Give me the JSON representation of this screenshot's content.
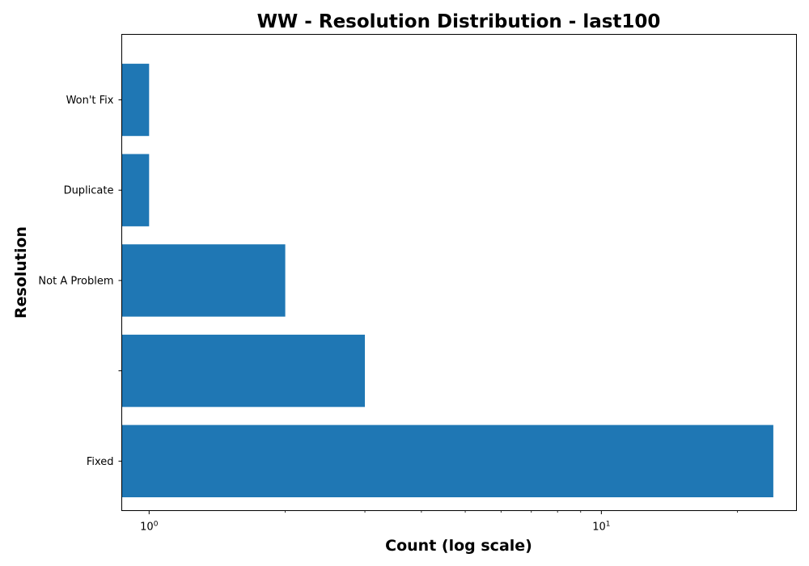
{
  "chart_data": {
    "type": "bar",
    "orientation": "horizontal",
    "title": "WW - Resolution Distribution - last100",
    "xlabel": "Count (log scale)",
    "ylabel": "Resolution",
    "x_scale": "log",
    "xlim": [
      0.87,
      27
    ],
    "x_major_ticks": [
      {
        "value": 1,
        "label": "10",
        "exp": "0"
      },
      {
        "value": 10,
        "label": "10",
        "exp": "1"
      }
    ],
    "categories": [
      "Fixed",
      "",
      "Not A Problem",
      "Duplicate",
      "Won't Fix"
    ],
    "values": [
      24,
      3,
      2,
      1,
      1
    ],
    "bar_color": "#1f77b4",
    "grid": false,
    "legend": "none"
  }
}
